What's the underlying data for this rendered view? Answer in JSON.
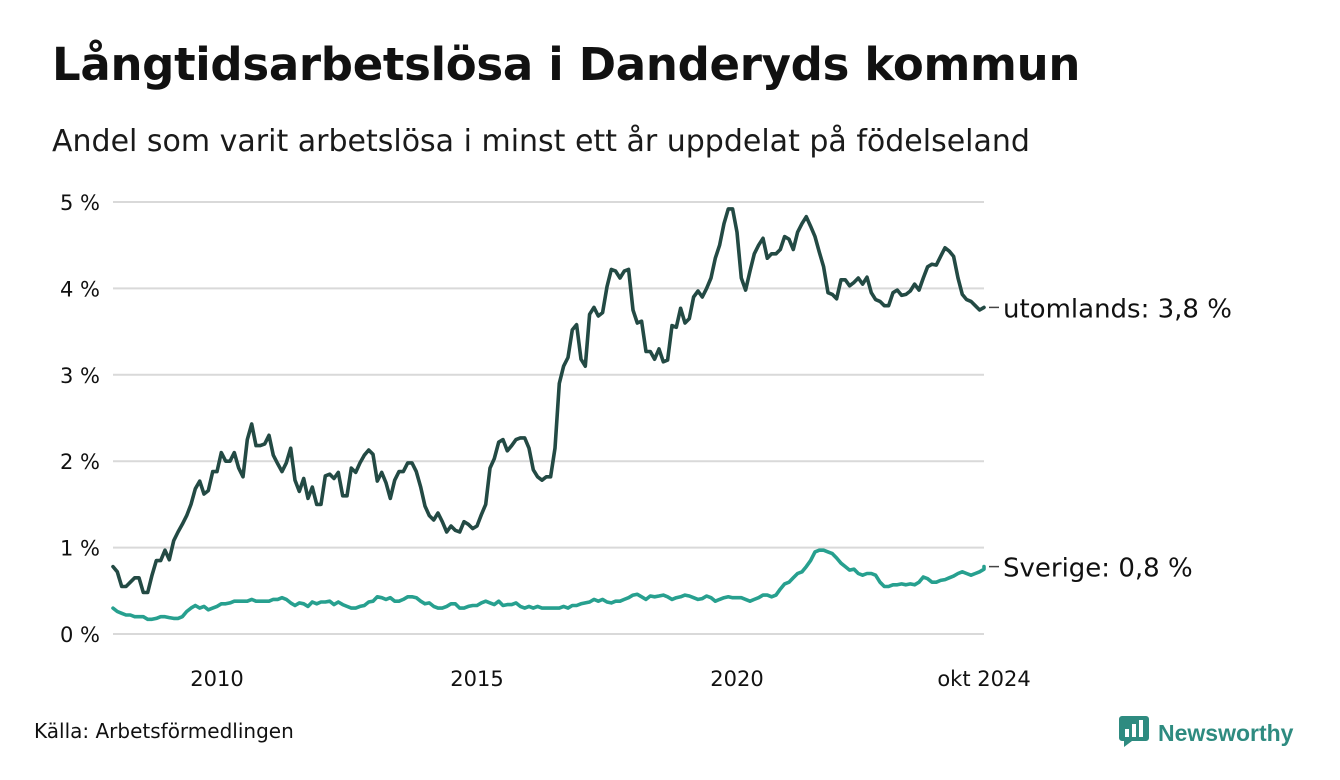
{
  "title": "Långtidsarbetslösa i Danderyds kommun",
  "subtitle": "Andel som varit arbetslösa i minst ett år uppdelat på födelseland",
  "source": "Källa: Arbetsförmedlingen",
  "brand": {
    "name": "Newsworthy",
    "icon": "newsworthy-logo-icon"
  },
  "colors": {
    "utomlands": "#234a44",
    "sverige": "#27a08f",
    "grid": "#d9d9d9",
    "brand": "#2e8b80"
  },
  "chart_data": {
    "type": "line",
    "title": "Långtidsarbetslösa i Danderyds kommun",
    "xlabel": "",
    "ylabel": "",
    "x_start": 2008.0,
    "x_step": 0.08333,
    "xlim": [
      2008.0,
      2024.75
    ],
    "ylim": [
      0,
      5
    ],
    "grid": true,
    "y_ticks": [
      0,
      1,
      2,
      3,
      4,
      5
    ],
    "y_tick_labels": [
      "0 %",
      "1 %",
      "2 %",
      "3 %",
      "4 %",
      "5 %"
    ],
    "x_ticks": [
      2010,
      2015,
      2020,
      2024.75
    ],
    "x_tick_labels": [
      "2010",
      "2015",
      "2020",
      "okt 2024"
    ],
    "series": [
      {
        "name": "utomlands",
        "label": "utomlands: 3,8 %",
        "color": "#234a44",
        "values": [
          0.78,
          0.72,
          0.55,
          0.55,
          0.6,
          0.65,
          0.65,
          0.48,
          0.48,
          0.68,
          0.85,
          0.85,
          0.97,
          0.86,
          1.08,
          1.18,
          1.27,
          1.37,
          1.5,
          1.68,
          1.77,
          1.62,
          1.66,
          1.88,
          1.88,
          2.1,
          2.0,
          2.0,
          2.1,
          1.92,
          1.82,
          2.25,
          2.43,
          2.18,
          2.18,
          2.2,
          2.3,
          2.07,
          1.97,
          1.88,
          1.98,
          2.15,
          1.78,
          1.65,
          1.8,
          1.57,
          1.7,
          1.5,
          1.5,
          1.83,
          1.85,
          1.8,
          1.87,
          1.6,
          1.6,
          1.92,
          1.87,
          1.98,
          2.07,
          2.13,
          2.08,
          1.77,
          1.87,
          1.75,
          1.57,
          1.78,
          1.88,
          1.88,
          1.98,
          1.98,
          1.88,
          1.7,
          1.48,
          1.37,
          1.32,
          1.4,
          1.3,
          1.18,
          1.25,
          1.2,
          1.18,
          1.3,
          1.27,
          1.22,
          1.25,
          1.38,
          1.5,
          1.92,
          2.03,
          2.22,
          2.25,
          2.12,
          2.18,
          2.25,
          2.27,
          2.27,
          2.15,
          1.9,
          1.82,
          1.78,
          1.82,
          1.82,
          2.15,
          2.9,
          3.1,
          3.2,
          3.52,
          3.58,
          3.18,
          3.1,
          3.7,
          3.78,
          3.68,
          3.72,
          4.02,
          4.22,
          4.2,
          4.12,
          4.2,
          4.22,
          3.75,
          3.6,
          3.62,
          3.27,
          3.27,
          3.18,
          3.3,
          3.15,
          3.17,
          3.57,
          3.55,
          3.77,
          3.6,
          3.65,
          3.9,
          3.97,
          3.9,
          4.0,
          4.12,
          4.35,
          4.5,
          4.75,
          4.92,
          4.92,
          4.65,
          4.12,
          3.98,
          4.2,
          4.4,
          4.5,
          4.58,
          4.35,
          4.4,
          4.4,
          4.45,
          4.6,
          4.57,
          4.45,
          4.65,
          4.75,
          4.83,
          4.72,
          4.6,
          4.42,
          4.25,
          3.95,
          3.93,
          3.88,
          4.1,
          4.1,
          4.03,
          4.07,
          4.12,
          4.05,
          4.13,
          3.95,
          3.87,
          3.85,
          3.8,
          3.8,
          3.95,
          3.98,
          3.92,
          3.93,
          3.97,
          4.05,
          3.98,
          4.12,
          4.25,
          4.28,
          4.27,
          4.37,
          4.47,
          4.43,
          4.37,
          4.12,
          3.93,
          3.87,
          3.85,
          3.8,
          3.75,
          3.78
        ]
      },
      {
        "name": "Sverige",
        "label": "Sverige: 0,8 %",
        "color": "#27a08f",
        "values": [
          0.3,
          0.26,
          0.24,
          0.22,
          0.22,
          0.2,
          0.2,
          0.2,
          0.17,
          0.17,
          0.18,
          0.2,
          0.2,
          0.19,
          0.18,
          0.18,
          0.2,
          0.26,
          0.3,
          0.33,
          0.3,
          0.32,
          0.28,
          0.3,
          0.32,
          0.35,
          0.35,
          0.36,
          0.38,
          0.38,
          0.38,
          0.38,
          0.4,
          0.38,
          0.38,
          0.38,
          0.38,
          0.4,
          0.4,
          0.42,
          0.4,
          0.36,
          0.33,
          0.36,
          0.35,
          0.32,
          0.37,
          0.35,
          0.37,
          0.37,
          0.38,
          0.34,
          0.37,
          0.34,
          0.32,
          0.3,
          0.3,
          0.32,
          0.33,
          0.37,
          0.38,
          0.43,
          0.42,
          0.4,
          0.42,
          0.38,
          0.38,
          0.4,
          0.43,
          0.43,
          0.42,
          0.38,
          0.35,
          0.36,
          0.32,
          0.3,
          0.3,
          0.32,
          0.35,
          0.35,
          0.3,
          0.3,
          0.32,
          0.33,
          0.33,
          0.36,
          0.38,
          0.36,
          0.34,
          0.38,
          0.33,
          0.34,
          0.34,
          0.36,
          0.32,
          0.3,
          0.32,
          0.3,
          0.32,
          0.3,
          0.3,
          0.3,
          0.3,
          0.3,
          0.32,
          0.3,
          0.33,
          0.33,
          0.35,
          0.36,
          0.37,
          0.4,
          0.38,
          0.4,
          0.37,
          0.36,
          0.38,
          0.38,
          0.4,
          0.42,
          0.45,
          0.46,
          0.43,
          0.4,
          0.44,
          0.43,
          0.44,
          0.45,
          0.43,
          0.4,
          0.42,
          0.43,
          0.45,
          0.44,
          0.42,
          0.4,
          0.41,
          0.44,
          0.42,
          0.38,
          0.4,
          0.42,
          0.43,
          0.42,
          0.42,
          0.42,
          0.4,
          0.38,
          0.4,
          0.42,
          0.45,
          0.45,
          0.43,
          0.45,
          0.52,
          0.58,
          0.6,
          0.65,
          0.7,
          0.72,
          0.78,
          0.85,
          0.95,
          0.97,
          0.97,
          0.95,
          0.93,
          0.88,
          0.82,
          0.78,
          0.74,
          0.75,
          0.7,
          0.68,
          0.7,
          0.7,
          0.68,
          0.6,
          0.55,
          0.55,
          0.57,
          0.57,
          0.58,
          0.57,
          0.58,
          0.57,
          0.6,
          0.66,
          0.64,
          0.6,
          0.6,
          0.62,
          0.63,
          0.65,
          0.67,
          0.7,
          0.72,
          0.7,
          0.68,
          0.7,
          0.72,
          0.75,
          0.78
        ]
      }
    ]
  }
}
